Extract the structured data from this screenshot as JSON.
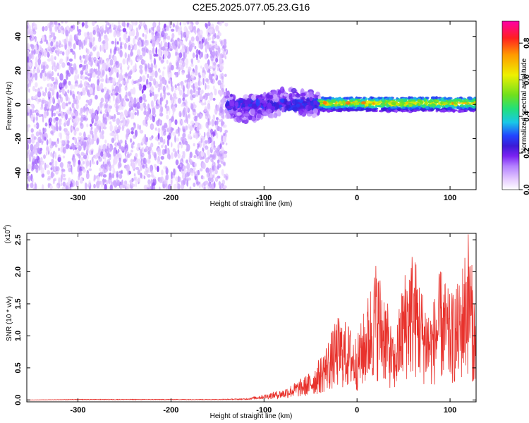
{
  "title": "C2E5.2025.077.05.23.G16",
  "colors": {
    "snr_line": "#e8322c",
    "colormap": [
      "#ffffff",
      "#e6ccff",
      "#b380ff",
      "#7a22f2",
      "#3b1bd6",
      "#2244ff",
      "#19c8e6",
      "#22e07a",
      "#6ee01e",
      "#eef000",
      "#ff9a00",
      "#ff2020",
      "#ff00a6"
    ]
  },
  "chart_data": [
    {
      "type": "heatmap",
      "xlabel": "Height of straight line (km)",
      "ylabel": "Frequency (Hz)",
      "xlim": [
        -355,
        128
      ],
      "ylim": [
        -50,
        49
      ],
      "xticks": [
        -300,
        -200,
        -100,
        0,
        100
      ],
      "xtick_labels": [
        "-300",
        "-200",
        "-100",
        "0",
        "100"
      ],
      "yticks": [
        -40,
        -20,
        0,
        20,
        40
      ],
      "ytick_labels": [
        "-40",
        "-20",
        "0",
        "20",
        "40"
      ],
      "grid": false,
      "colorbar": {
        "label": "Normalized spectral amplitude",
        "range": [
          0,
          0.92
        ],
        "ticks": [
          0.0,
          0.2,
          0.4,
          0.6,
          0.8
        ],
        "tick_labels": [
          "0.0",
          "0.2",
          "0.4",
          "0.6",
          "0.8"
        ]
      },
      "regions": [
        {
          "x": [
            -355,
            -140
          ],
          "freq": [
            -50,
            49
          ],
          "amplitude": [
            0.05,
            0.15
          ]
        },
        {
          "x": [
            -140,
            -40
          ],
          "freq": [
            -8,
            8
          ],
          "amplitude": [
            0.1,
            0.3
          ]
        },
        {
          "x": [
            -40,
            128
          ],
          "freq": [
            -4,
            4
          ],
          "amplitude": [
            0.3,
            0.9
          ]
        }
      ]
    },
    {
      "type": "line",
      "xlabel": "Height of straight line (km)",
      "ylabel": "SNR (10 * v/v)",
      "y_multiplier": "(x10",
      "y_multiplier_exp": "4",
      "xlim": [
        -355,
        128
      ],
      "ylim": [
        -0.03,
        2.6
      ],
      "xticks": [
        -300,
        -200,
        -100,
        0,
        100
      ],
      "xtick_labels": [
        "-300",
        "-200",
        "-100",
        "0",
        "100"
      ],
      "yticks": [
        0.0,
        0.5,
        1.0,
        1.5,
        2.0,
        2.5
      ],
      "ytick_labels": [
        "0.0",
        "0.5",
        "1.0",
        "1.5",
        "2.0",
        "2.5"
      ],
      "grid": false,
      "series": [
        {
          "x": [
            -355,
            -300,
            -250,
            -200,
            -150,
            -120,
            -100,
            -80,
            -60,
            -50,
            -40,
            -30,
            -20,
            -10,
            0,
            10,
            20,
            30,
            40,
            50,
            60,
            70,
            80,
            90,
            100,
            110,
            120,
            128
          ],
          "values": [
            0.0,
            0.01,
            0.01,
            0.01,
            0.01,
            0.02,
            0.08,
            0.15,
            0.3,
            0.4,
            0.6,
            0.9,
            1.2,
            1.1,
            0.9,
            1.4,
            2.0,
            1.6,
            0.8,
            1.8,
            2.2,
            1.6,
            1.3,
            1.9,
            1.5,
            1.7,
            2.5,
            1.2
          ]
        }
      ]
    }
  ]
}
